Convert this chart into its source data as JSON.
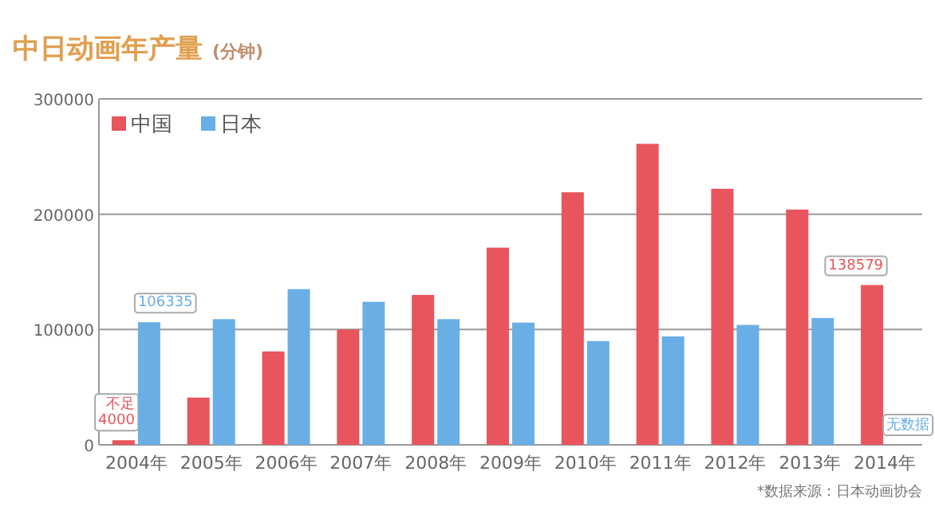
{
  "chart_data": {
    "type": "bar",
    "title": "中日动画年产量",
    "subtitle": "(分钟)",
    "categories": [
      "2004年",
      "2005年",
      "2006年",
      "2007年",
      "2008年",
      "2009年",
      "2010年",
      "2011年",
      "2012年",
      "2013年",
      "2014年"
    ],
    "series": [
      {
        "name": "中国",
        "color": "#e8555c",
        "values": [
          4000,
          41000,
          81000,
          100000,
          130000,
          171000,
          219000,
          261000,
          222000,
          204000,
          138579
        ],
        "value_labels": [
          "不足4000",
          null,
          null,
          null,
          null,
          null,
          null,
          null,
          null,
          null,
          "138579"
        ]
      },
      {
        "name": "日本",
        "color": "#6aaee6",
        "values": [
          106335,
          109000,
          135000,
          124000,
          109000,
          106000,
          90000,
          94000,
          104000,
          110000,
          null
        ],
        "value_labels": [
          "106335",
          null,
          null,
          null,
          null,
          null,
          null,
          null,
          null,
          null,
          "无数据"
        ]
      }
    ],
    "ylim": [
      0,
      300000
    ],
    "yticks": [
      0,
      100000,
      200000,
      300000
    ],
    "grid": "y",
    "legend": "top left",
    "annotations": [
      "*数据来源：日本动画协会"
    ]
  }
}
